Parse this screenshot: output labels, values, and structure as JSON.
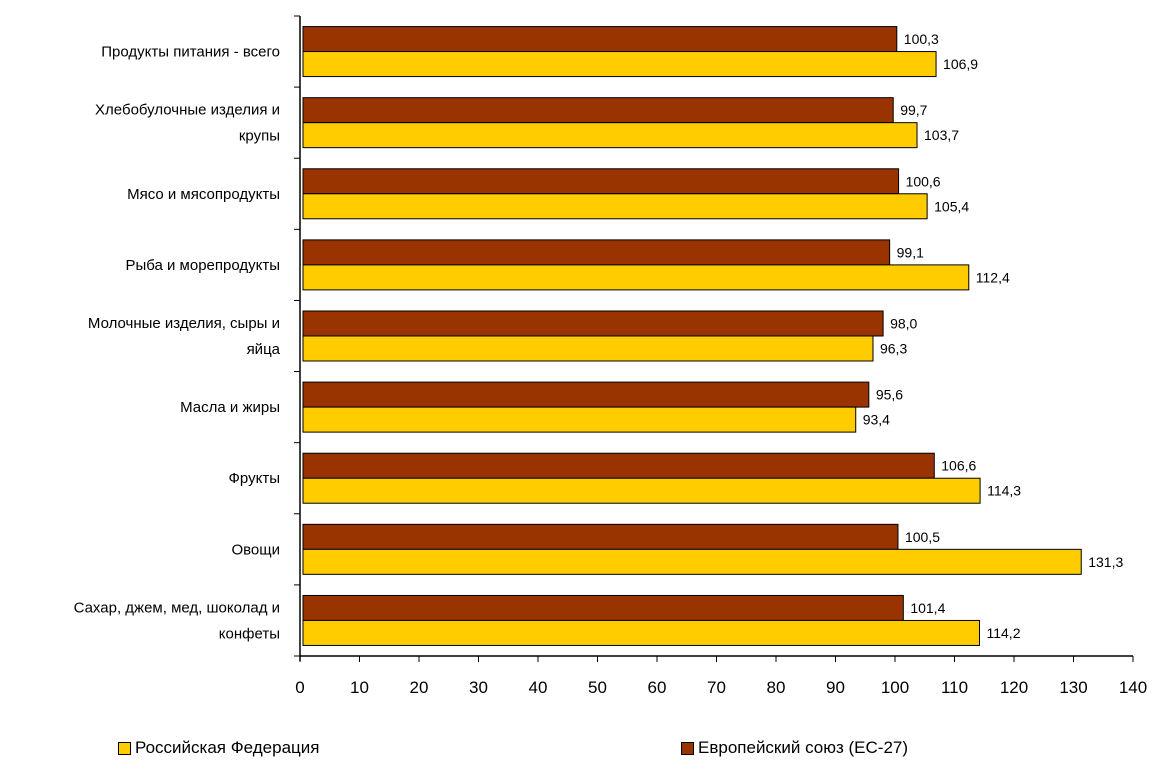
{
  "chart_data": {
    "type": "bar",
    "orientation": "horizontal",
    "categories": [
      [
        "Продукты питания - всего"
      ],
      [
        "Хлебобулочные изделия и",
        "крупы"
      ],
      [
        "Мясо и мясопродукты"
      ],
      [
        "Рыба и морепродукты"
      ],
      [
        "Молочные изделия, сыры и",
        "яйца"
      ],
      [
        "Масла и жиры"
      ],
      [
        "Фрукты"
      ],
      [
        "Овощи"
      ],
      [
        "Сахар, джем, мед, шоколад и",
        "конфеты"
      ]
    ],
    "series": [
      {
        "name": "Европейский союз (ЕС-27)",
        "color": "#993300",
        "values": [
          100.3,
          99.7,
          100.6,
          99.1,
          98.0,
          95.6,
          106.6,
          100.5,
          101.4
        ],
        "labels": [
          "100,3",
          "99,7",
          "100,6",
          "99,1",
          "98,0",
          "95,6",
          "106,6",
          "100,5",
          "101,4"
        ]
      },
      {
        "name": "Российская Федерация",
        "color": "#FFCC00",
        "values": [
          106.9,
          103.7,
          105.4,
          112.4,
          96.3,
          93.4,
          114.3,
          131.3,
          114.2
        ],
        "labels": [
          "106,9",
          "103,7",
          "105,4",
          "112,4",
          "96,3",
          "93,4",
          "114,3",
          "131,3",
          "114,2"
        ]
      }
    ],
    "xlim": [
      0,
      140
    ],
    "xticks": [
      "0",
      "10",
      "20",
      "30",
      "40",
      "50",
      "60",
      "70",
      "80",
      "90",
      "100",
      "110",
      "120",
      "130",
      "140"
    ],
    "legend": {
      "position": "bottom",
      "items": [
        {
          "label": "Российская Федерация",
          "color": "#FFCC00"
        },
        {
          "label": "Европейский союз (ЕС-27)",
          "color": "#993300"
        }
      ]
    },
    "grid": false
  }
}
